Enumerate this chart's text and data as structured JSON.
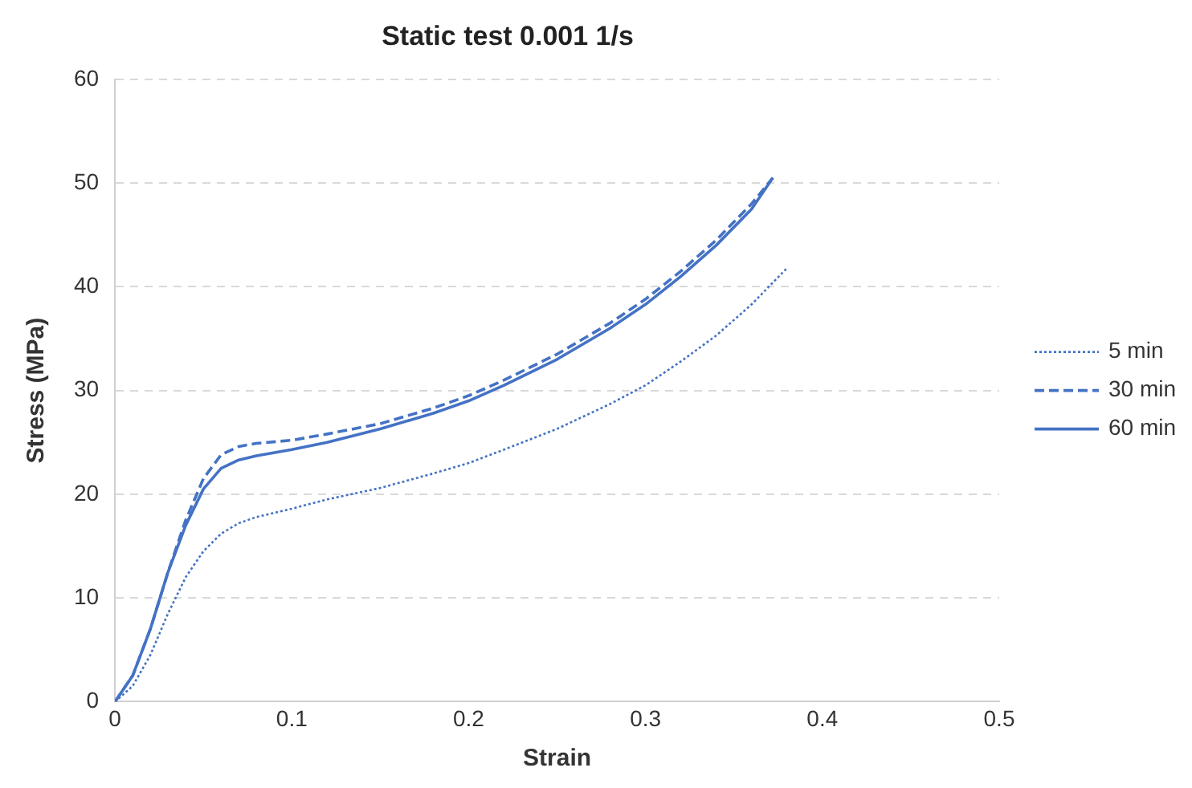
{
  "chart_data": {
    "type": "line",
    "title": "Static test 0.001 1/s",
    "xlabel": "Strain",
    "ylabel": "Stress (MPa)",
    "xlim": [
      0,
      0.5
    ],
    "xticks": [
      0,
      0.1,
      0.2,
      0.3,
      0.4,
      0.5
    ],
    "ylim": [
      0,
      60
    ],
    "yticks": [
      0,
      10,
      20,
      30,
      40,
      50,
      60
    ],
    "grid": "y",
    "legend": "right",
    "marker": "none",
    "series": [
      {
        "name": "5 min",
        "color": "#4472c4",
        "line_style": "dotted",
        "x": [
          0,
          0.01,
          0.02,
          0.03,
          0.04,
          0.05,
          0.06,
          0.07,
          0.08,
          0.1,
          0.12,
          0.15,
          0.18,
          0.2,
          0.22,
          0.25,
          0.28,
          0.3,
          0.32,
          0.34,
          0.36,
          0.38
        ],
        "values": [
          0,
          1.5,
          4.5,
          8.5,
          12,
          14.5,
          16.2,
          17.2,
          17.8,
          18.6,
          19.5,
          20.6,
          22,
          23,
          24.3,
          26.3,
          28.7,
          30.5,
          32.8,
          35.3,
          38.3,
          41.8
        ]
      },
      {
        "name": "30 min",
        "color": "#4472c4",
        "line_style": "dashed",
        "x": [
          0,
          0.01,
          0.02,
          0.03,
          0.04,
          0.05,
          0.06,
          0.07,
          0.08,
          0.1,
          0.12,
          0.15,
          0.18,
          0.2,
          0.22,
          0.25,
          0.28,
          0.3,
          0.32,
          0.34,
          0.36,
          0.372
        ],
        "values": [
          0,
          2.5,
          7,
          12.5,
          17.5,
          21.5,
          23.8,
          24.6,
          24.9,
          25.2,
          25.8,
          26.8,
          28.3,
          29.5,
          31,
          33.5,
          36.5,
          38.8,
          41.5,
          44.5,
          48,
          50.5
        ]
      },
      {
        "name": "60 min",
        "color": "#4472c4",
        "line_style": "solid",
        "x": [
          0,
          0.01,
          0.02,
          0.03,
          0.04,
          0.05,
          0.06,
          0.07,
          0.08,
          0.1,
          0.12,
          0.15,
          0.18,
          0.2,
          0.22,
          0.25,
          0.28,
          0.3,
          0.32,
          0.34,
          0.36,
          0.372
        ],
        "values": [
          0,
          2.5,
          7,
          12.5,
          17,
          20.5,
          22.5,
          23.3,
          23.7,
          24.3,
          25,
          26.3,
          27.8,
          29,
          30.5,
          33,
          36,
          38.3,
          41,
          44,
          47.5,
          50.5
        ]
      }
    ]
  }
}
